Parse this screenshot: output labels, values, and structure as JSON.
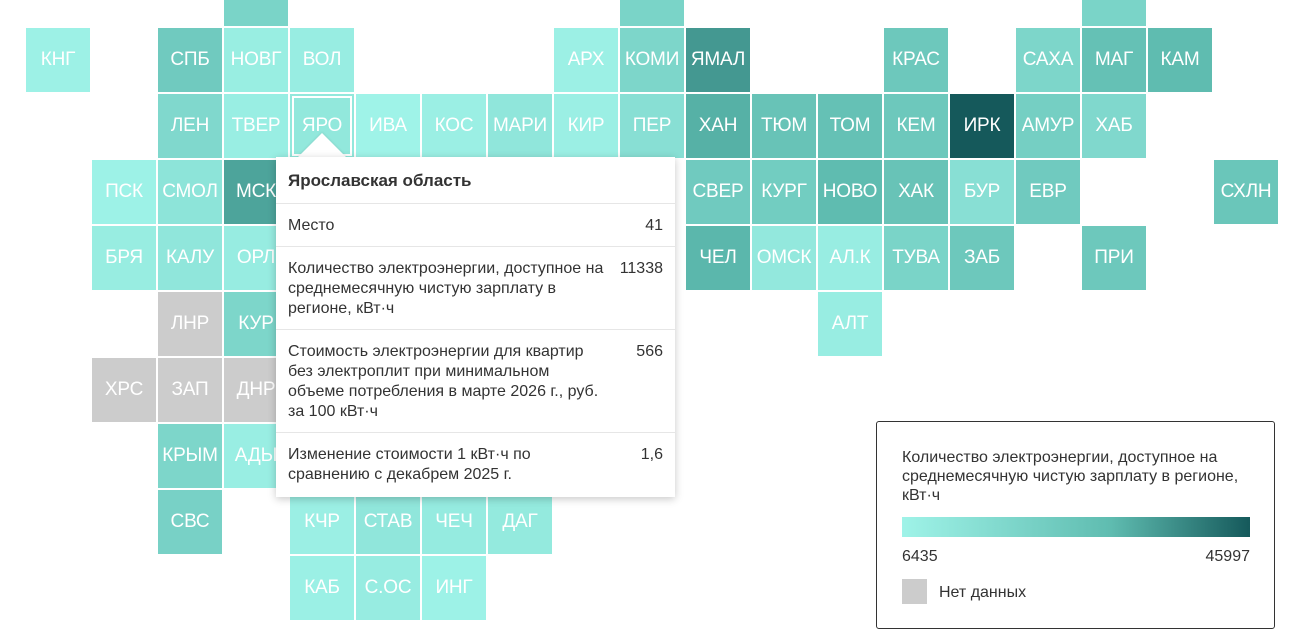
{
  "regions": [
    {
      "label": "",
      "value": null,
      "nodata": false
    },
    {
      "label": "КНГ",
      "value": 7200
    },
    {
      "label": "СПБ",
      "value": 24000
    },
    {
      "label": "НОВГ",
      "value": 8800
    },
    {
      "label": "ВОЛ",
      "value": 9000
    },
    {
      "label": "АРХ",
      "value": 7600
    },
    {
      "label": "КОМИ",
      "value": 19000
    },
    {
      "label": "ЯМАЛ",
      "value": 36000
    },
    {
      "label": "КРАС",
      "value": 25000
    },
    {
      "label": "САХА",
      "value": 19000
    },
    {
      "label": "МАГ",
      "value": 28000
    },
    {
      "label": "КАМ",
      "value": 30000
    },
    {
      "label": "ЛЕН",
      "value": 18000
    },
    {
      "label": "ТВЕР",
      "value": 8700
    },
    {
      "label": "ЯРО",
      "value": 11338
    },
    {
      "label": "ИВА",
      "value": 6435
    },
    {
      "label": "КОС",
      "value": 8000
    },
    {
      "label": "МАРИ",
      "value": 12000
    },
    {
      "label": "КИР",
      "value": 8000
    },
    {
      "label": "ПЕР",
      "value": 15000
    },
    {
      "label": "ХАН",
      "value": 32000
    },
    {
      "label": "ТЮМ",
      "value": 27000
    },
    {
      "label": "ТОМ",
      "value": 28000
    },
    {
      "label": "КЕМ",
      "value": 25000
    },
    {
      "label": "ИРК",
      "value": 45997
    },
    {
      "label": "АМУР",
      "value": 22000
    },
    {
      "label": "ХАБ",
      "value": 18000
    },
    {
      "label": "ПСК",
      "value": 7000
    },
    {
      "label": "СМОЛ",
      "value": 13000
    },
    {
      "label": "МСК",
      "value": 34000
    },
    {
      "label": "СВЕР",
      "value": 24000
    },
    {
      "label": "КУРГ",
      "value": 23000
    },
    {
      "label": "НОВО",
      "value": 30000
    },
    {
      "label": "ХАК",
      "value": 27000
    },
    {
      "label": "БУР",
      "value": 15000
    },
    {
      "label": "ЕВР",
      "value": 24000
    },
    {
      "label": "СХЛН",
      "value": 26000
    },
    {
      "label": "БРЯ",
      "value": 9200
    },
    {
      "label": "КАЛУ",
      "value": 12000
    },
    {
      "label": "ОРЛ",
      "value": 9500
    },
    {
      "label": "ЧЕЛ",
      "value": 31000
    },
    {
      "label": "ОМСК",
      "value": 11000
    },
    {
      "label": "АЛ.К",
      "value": 9000
    },
    {
      "label": "ТУВА",
      "value": 20000
    },
    {
      "label": "ЗАБ",
      "value": 25000
    },
    {
      "label": "ПРИ",
      "value": 25000
    },
    {
      "label": "ЛНР",
      "value": null,
      "nodata": true
    },
    {
      "label": "КУР",
      "value": 19000
    },
    {
      "label": "АЛТ",
      "value": 9000
    },
    {
      "label": "ХРС",
      "value": null,
      "nodata": true
    },
    {
      "label": "ЗАП",
      "value": null,
      "nodata": true
    },
    {
      "label": "ДНР",
      "value": null,
      "nodata": true
    },
    {
      "label": "КРЫМ",
      "value": 19000
    },
    {
      "label": "АДЫ",
      "value": 8500
    },
    {
      "label": "СВС",
      "value": 21000
    },
    {
      "label": "КЧР",
      "value": 8000
    },
    {
      "label": "СТАВ",
      "value": 12000
    },
    {
      "label": "ЧЕЧ",
      "value": 10000
    },
    {
      "label": "ДАГ",
      "value": 10500
    },
    {
      "label": "КАБ",
      "value": 7800
    },
    {
      "label": "С.ОС",
      "value": 9500
    },
    {
      "label": "ИНГ",
      "value": 7000
    },
    {
      "label": "",
      "value": 20000
    },
    {
      "label": "",
      "value": 20000
    },
    {
      "label": "",
      "value": 20000
    }
  ],
  "selected_region": "ЯРО",
  "tooltip": {
    "title": "Ярославская область",
    "rows": [
      {
        "label": "Место",
        "value": "41"
      },
      {
        "label": "Количество электроэнергии, доступное на среднемесячную чистую зарплату в регионе, кВт·ч",
        "value": "11338"
      },
      {
        "label": "Стоимость электроэнергии для квартир без электроплит при минимальном объеме потребления в марте 2026 г., руб. за 100 кВт·ч",
        "value": "566"
      },
      {
        "label": "Изменение стоимости 1 кВт·ч по сравнению с декабрем 2025 г.",
        "value": "1,6"
      }
    ]
  },
  "legend": {
    "title": "Количество электроэнергии, доступное на среднемесячную чистую зарплату в регионе, кВт·ч",
    "min": "6435",
    "max": "45997",
    "nodata_label": "Нет данных",
    "color_low": "#9ff3e8",
    "color_mid": "#5fbcb0",
    "color_high": "#15595b",
    "nodata_color": "#cccccc"
  }
}
